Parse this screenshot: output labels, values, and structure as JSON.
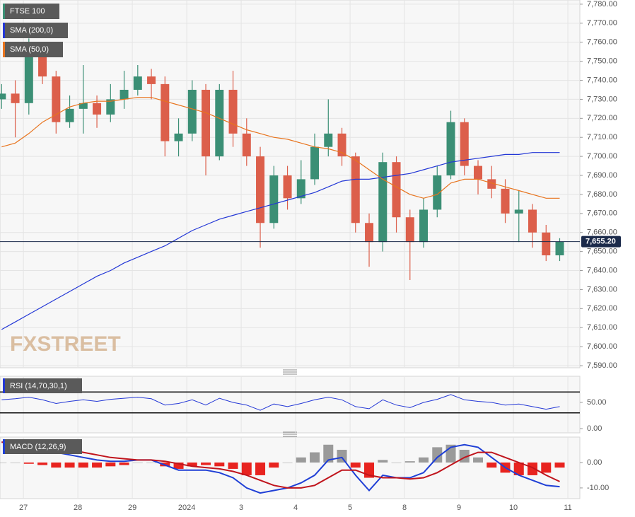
{
  "chart_data": [
    {
      "type": "candlestick",
      "title": "FTSE 100",
      "x": [
        -0.4,
        -0.15,
        0.1,
        0.35,
        0.6,
        0.85,
        1.1,
        1.35,
        1.6,
        1.85,
        2.1,
        2.35,
        2.6,
        2.85,
        3.1,
        3.35,
        3.6,
        3.85,
        4.1,
        4.35,
        4.6,
        4.85,
        5.1,
        5.35,
        5.6,
        5.85,
        6.1,
        6.35,
        6.6,
        6.85,
        7.1,
        7.35,
        7.6,
        7.85,
        8.1,
        8.35,
        8.6,
        8.85,
        9.1,
        9.35,
        9.6,
        9.85
      ],
      "open": [
        7730,
        7733,
        7728,
        7755,
        7742,
        7718,
        7725,
        7728,
        7722,
        7730,
        7735,
        7742,
        7738,
        7708,
        7712,
        7735,
        7700,
        7735,
        7712,
        7700,
        7665,
        7690,
        7678,
        7688,
        7705,
        7712,
        7700,
        7665,
        7655,
        7697,
        7668,
        7655,
        7672,
        7690,
        7718,
        7695,
        7688,
        7683,
        7670,
        7672,
        7660,
        7648
      ],
      "high": [
        7738,
        7740,
        7762,
        7758,
        7745,
        7732,
        7748,
        7732,
        7738,
        7745,
        7748,
        7746,
        7742,
        7720,
        7740,
        7738,
        7738,
        7745,
        7720,
        7705,
        7695,
        7695,
        7698,
        7712,
        7730,
        7715,
        7702,
        7670,
        7702,
        7700,
        7672,
        7678,
        7695,
        7724,
        7720,
        7698,
        7695,
        7688,
        7682,
        7675,
        7664,
        7657
      ],
      "low": [
        7725,
        7710,
        7722,
        7738,
        7712,
        7715,
        7712,
        7715,
        7718,
        7725,
        7732,
        7730,
        7700,
        7700,
        7708,
        7690,
        7698,
        7705,
        7695,
        7652,
        7662,
        7672,
        7675,
        7685,
        7700,
        7695,
        7660,
        7642,
        7650,
        7660,
        7635,
        7652,
        7668,
        7688,
        7690,
        7680,
        7678,
        7665,
        7655,
        7652,
        7645,
        7645
      ],
      "close": [
        7733,
        7728,
        7755,
        7742,
        7718,
        7725,
        7728,
        7722,
        7730,
        7735,
        7742,
        7738,
        7708,
        7712,
        7735,
        7700,
        7735,
        7712,
        7700,
        7665,
        7690,
        7678,
        7688,
        7705,
        7712,
        7700,
        7665,
        7655,
        7697,
        7668,
        7655,
        7672,
        7690,
        7718,
        7695,
        7688,
        7683,
        7670,
        7672,
        7660,
        7648,
        7655.2
      ],
      "up_color": "#3b8f75",
      "down_color": "#dc5f4b",
      "series": [
        {
          "name": "SMA (200,0)",
          "color": "#2337d6",
          "values": [
            7609,
            7613,
            7617,
            7621,
            7625,
            7629,
            7633,
            7637,
            7640,
            7644,
            7647,
            7650,
            7653,
            7657,
            7661,
            7664,
            7667,
            7669,
            7671,
            7673,
            7675,
            7677,
            7679,
            7681,
            7684,
            7687,
            7688,
            7688,
            7689,
            7690,
            7691,
            7693,
            7695,
            7697,
            7698,
            7699,
            7700,
            7701,
            7701,
            7702,
            7702,
            7702
          ]
        },
        {
          "name": "SMA (50,0)",
          "color": "#e8741e",
          "values": [
            7705,
            7707,
            7712,
            7718,
            7722,
            7726,
            7728,
            7729,
            7729,
            7730,
            7731,
            7731,
            7729,
            7727,
            7725,
            7723,
            7720,
            7717,
            7714,
            7712,
            7710,
            7709,
            7707,
            7705,
            7704,
            7702,
            7698,
            7693,
            7688,
            7684,
            7680,
            7678,
            7680,
            7686,
            7688,
            7688,
            7686,
            7684,
            7682,
            7680,
            7678,
            7678
          ]
        }
      ],
      "xlim": [
        -0.43,
        10.22
      ],
      "xticks": [
        {
          "value": 0,
          "label": "27"
        },
        {
          "value": 1,
          "label": "28"
        },
        {
          "value": 2,
          "label": "29"
        },
        {
          "value": 3,
          "label": "2024"
        },
        {
          "value": 4,
          "label": "3"
        },
        {
          "value": 5,
          "label": "4"
        },
        {
          "value": 6,
          "label": "5"
        },
        {
          "value": 7,
          "label": "8"
        },
        {
          "value": 8,
          "label": "9"
        },
        {
          "value": 9,
          "label": "10"
        },
        {
          "value": 10,
          "label": "11"
        }
      ],
      "ylim": [
        7588.9,
        7782.2
      ],
      "yticks": [
        {
          "value": 7590,
          "label": "7,590.00"
        },
        {
          "value": 7600,
          "label": "7,600.00"
        },
        {
          "value": 7610,
          "label": "7,610.00"
        },
        {
          "value": 7620,
          "label": "7,620.00"
        },
        {
          "value": 7630,
          "label": "7,630.00"
        },
        {
          "value": 7640,
          "label": "7,640.00"
        },
        {
          "value": 7650,
          "label": "7,650.00"
        },
        {
          "value": 7660,
          "label": "7,660.00"
        },
        {
          "value": 7670,
          "label": "7,670.00"
        },
        {
          "value": 7680,
          "label": "7,680.00"
        },
        {
          "value": 7690,
          "label": "7,690.00"
        },
        {
          "value": 7700,
          "label": "7,700.00"
        },
        {
          "value": 7710,
          "label": "7,710.00"
        },
        {
          "value": 7720,
          "label": "7,720.00"
        },
        {
          "value": 7730,
          "label": "7,730.00"
        },
        {
          "value": 7740,
          "label": "7,740.00"
        },
        {
          "value": 7750,
          "label": "7,750.00"
        },
        {
          "value": 7760,
          "label": "7,760.00"
        },
        {
          "value": 7770,
          "label": "7,770.00"
        },
        {
          "value": 7780,
          "label": "7,780.00"
        }
      ],
      "last_price": 7655.2,
      "last_price_label": "7,655.20",
      "last_price_color": "#1b2a4a",
      "watermark": "FXSTREET",
      "grid": true
    },
    {
      "type": "line",
      "title": "RSI (14,70,30,1)",
      "color": "#2337d6",
      "values": [
        55,
        57,
        60,
        55,
        48,
        52,
        55,
        52,
        56,
        58,
        60,
        57,
        45,
        48,
        55,
        45,
        58,
        50,
        45,
        35,
        47,
        42,
        48,
        55,
        60,
        55,
        42,
        38,
        55,
        45,
        40,
        50,
        56,
        65,
        55,
        52,
        50,
        45,
        47,
        42,
        37,
        42
      ],
      "levels": [
        70,
        30
      ],
      "ylim": [
        -8.1,
        100
      ],
      "yticks": [
        {
          "value": 0,
          "label": "0.00"
        },
        {
          "value": 50,
          "label": "50.00"
        }
      ]
    },
    {
      "type": "macd",
      "title": "MACD (12,26,9)",
      "series": [
        {
          "color": "#1f3fd6",
          "values": [
            8,
            8,
            7.5,
            6,
            4,
            3,
            2,
            1,
            0.5,
            0.5,
            1,
            1,
            -1,
            -3,
            -3,
            -3,
            -4,
            -6,
            -10,
            -12,
            -11,
            -10,
            -8,
            -5,
            1,
            2,
            -5,
            -11,
            -5,
            -6,
            -6,
            -4,
            2,
            6,
            7,
            6,
            2,
            -2,
            -5,
            -7,
            -9,
            -9.5
          ]
        },
        {
          "color": "#c0141c",
          "values": [
            8,
            8,
            8,
            7,
            6,
            5,
            4,
            3,
            2,
            1.5,
            1,
            1,
            0.5,
            -0.5,
            -1.5,
            -2,
            -2.5,
            -3.5,
            -5,
            -7,
            -9,
            -10,
            -10,
            -9,
            -6,
            -3,
            -3,
            -5,
            -6,
            -6,
            -6.5,
            -6,
            -4,
            -1,
            2,
            4,
            4,
            2,
            0,
            -2,
            -5,
            -7.5
          ]
        }
      ],
      "histogram": {
        "up_color": "#9a9a9a",
        "down_color": "#e8231f",
        "values": [
          0,
          0,
          -0.5,
          -1,
          -2,
          -2,
          -2,
          -2,
          -1.5,
          -1,
          0,
          0,
          -1.5,
          -2.5,
          -1.5,
          -1,
          -1.5,
          -2.5,
          -5,
          -5,
          -2,
          0,
          2,
          4,
          7,
          5,
          -2,
          -6,
          1,
          0,
          0.5,
          2,
          6,
          7,
          5,
          2,
          -2,
          -4,
          -5,
          -5,
          -4,
          -2
        ]
      },
      "ylim": [
        -14.2,
        10
      ],
      "yticks": [
        {
          "value": 0,
          "label": "0.00"
        },
        {
          "value": -10,
          "label": "-10.00"
        }
      ]
    }
  ]
}
